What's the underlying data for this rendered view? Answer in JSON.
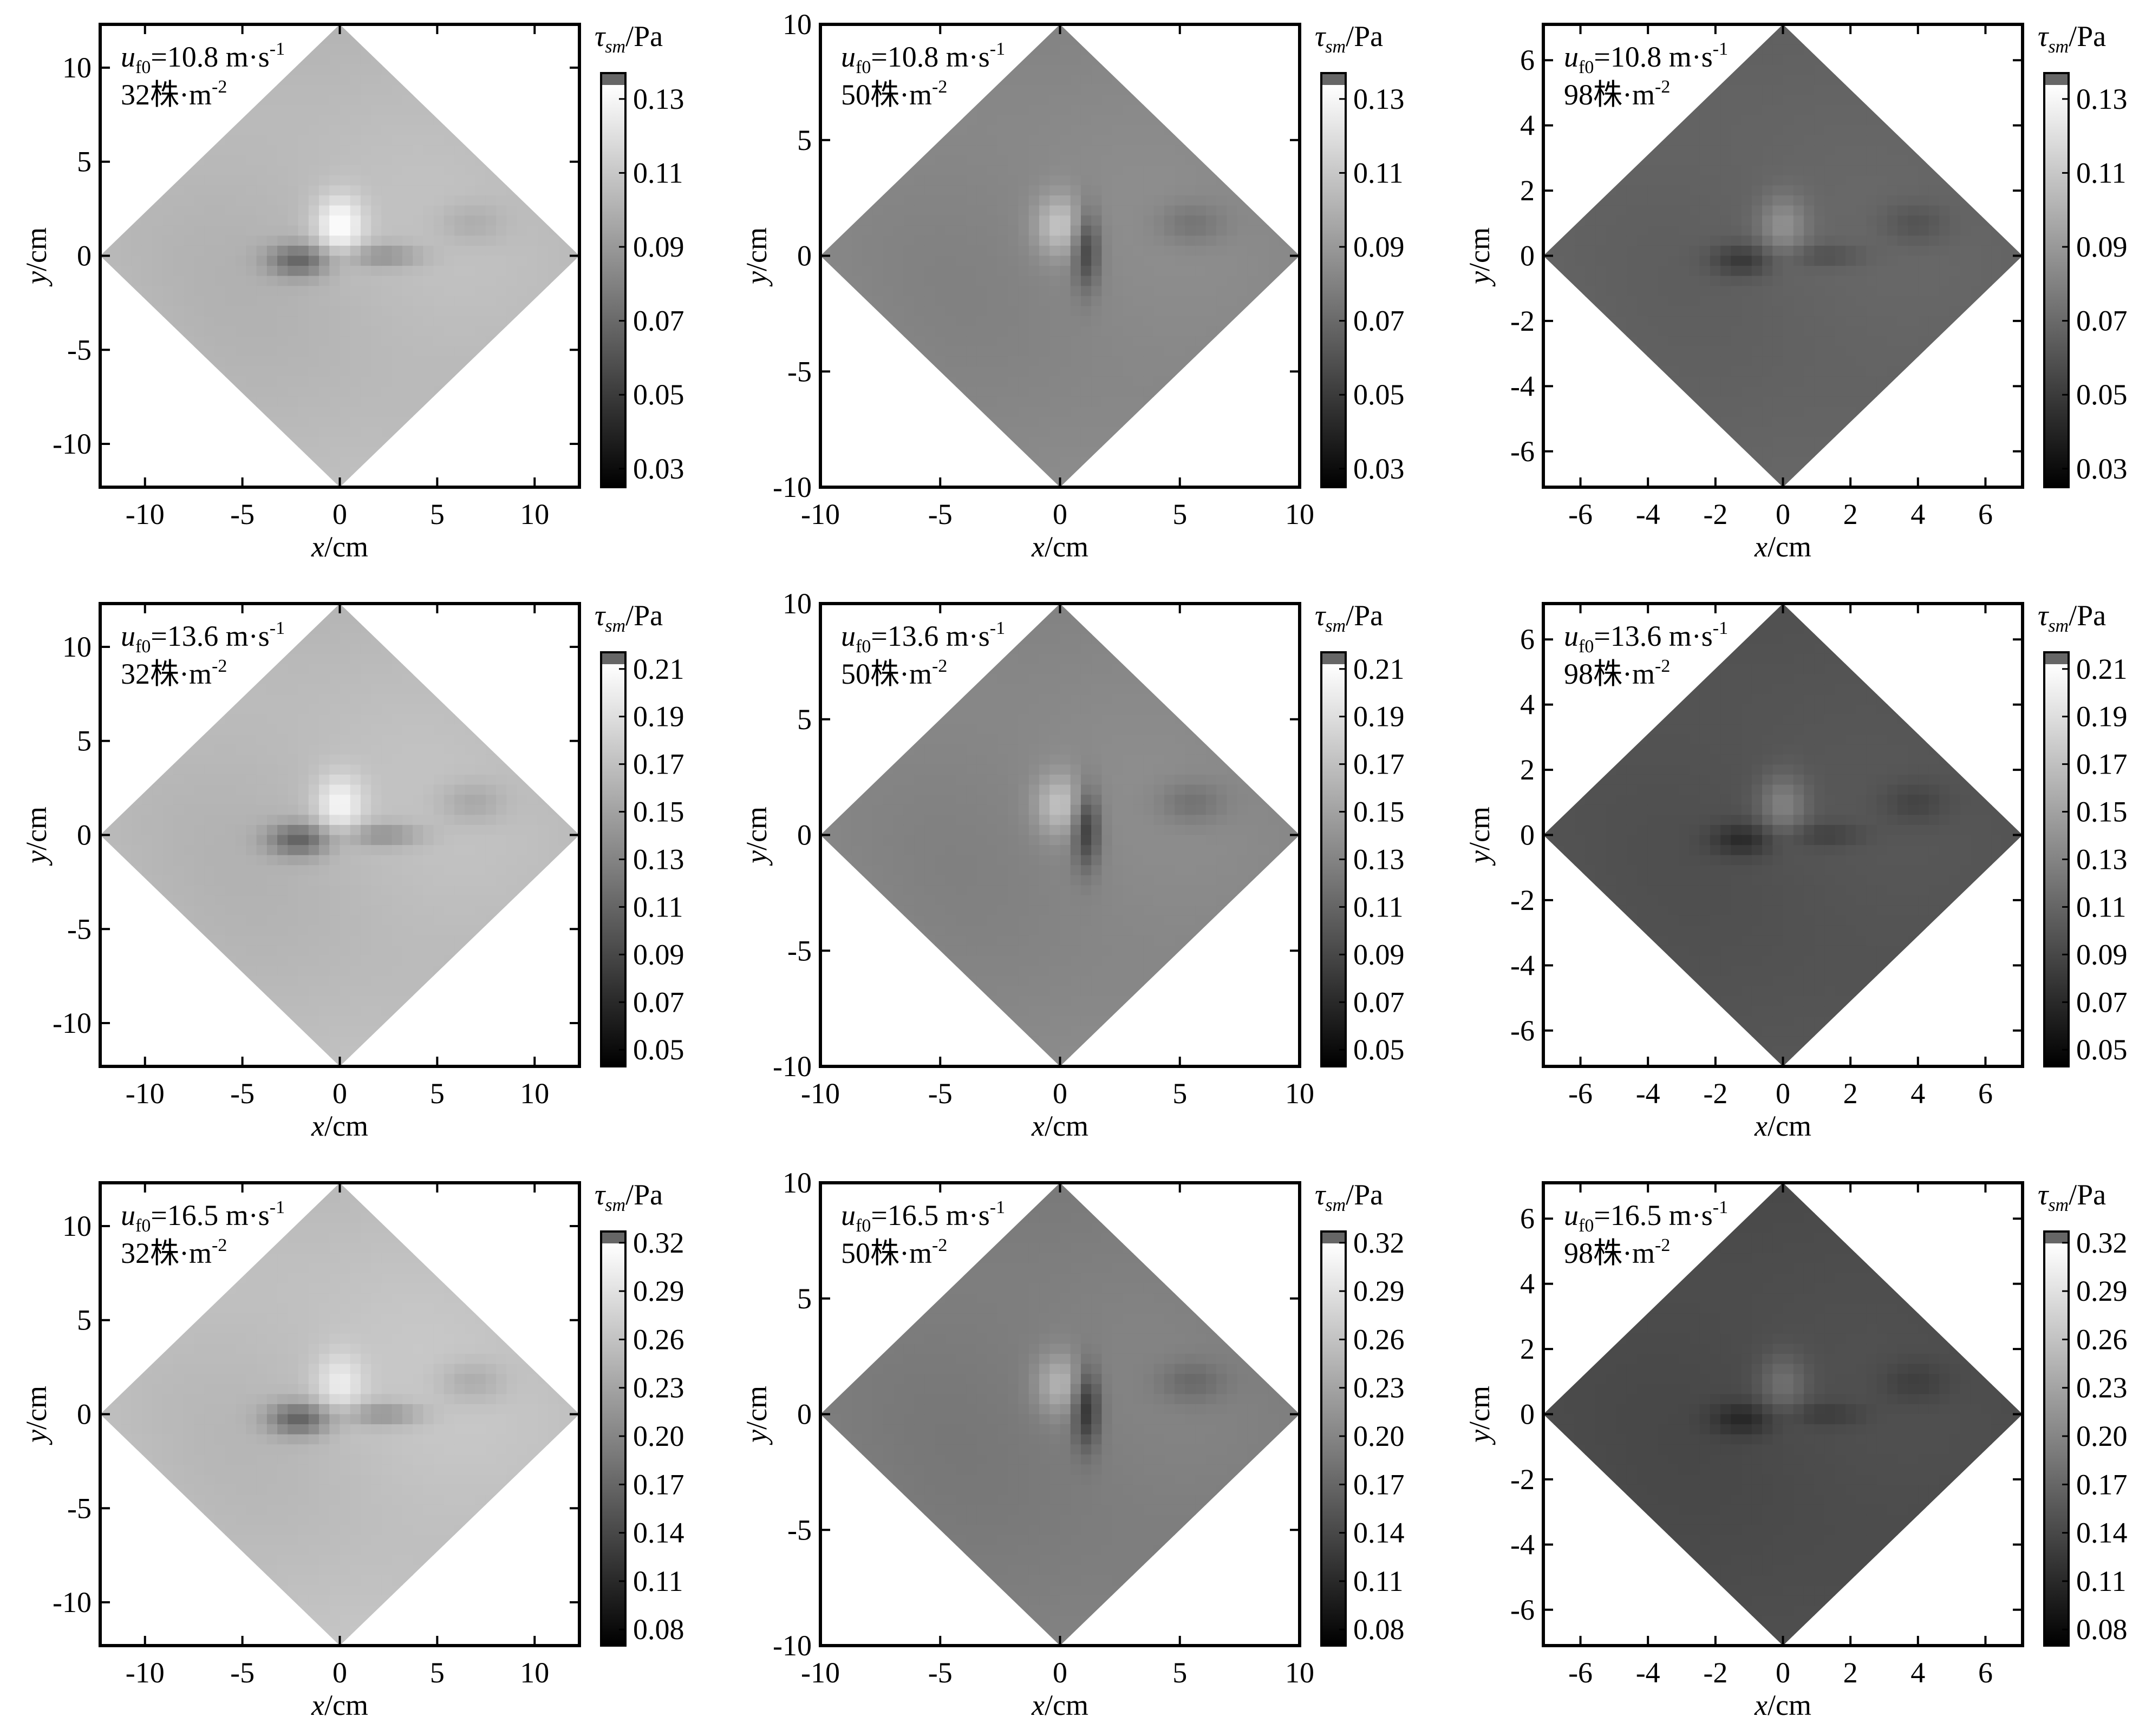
{
  "figure": {
    "grayscale_stops": [
      "#000000",
      "#1a1a1a",
      "#333333",
      "#4d4d4d",
      "#666666",
      "#808080",
      "#999999",
      "#b3b3b3",
      "#cccccc",
      "#e6e6e6",
      "#ffffff"
    ],
    "top_swatch_color": "#666666"
  },
  "chart_data": [
    {
      "type": "heatmap",
      "row": 0,
      "col": 0,
      "xlabel": "x/cm",
      "ylabel": "y/cm",
      "xlim": [
        -12.3,
        12.3
      ],
      "ylim": [
        -12.3,
        12.3
      ],
      "xticks": [
        -10,
        -5,
        0,
        5,
        10
      ],
      "yticks": [
        -10,
        -5,
        0,
        5,
        10
      ],
      "xtick_labels": [
        "-10",
        "-5",
        "0",
        "5",
        "10"
      ],
      "ytick_labels": [
        "-10",
        "-5",
        "0",
        "5",
        "10"
      ],
      "diamond_half_diagonal": 12.3,
      "wind_speed_label": "=10.8 m·s",
      "wind_speed_exponent": "-1",
      "density_label": "32株·m",
      "density_exponent": "-2",
      "colorbar": {
        "title_symbol": "τ",
        "title_subscript": "sm",
        "title_unit": "/Pa",
        "range": [
          0.025,
          0.137
        ],
        "ticks": [
          0.03,
          0.05,
          0.07,
          0.09,
          0.11,
          0.13
        ],
        "tick_labels": [
          "0.03",
          "0.05",
          "0.07",
          "0.09",
          "0.11",
          "0.13"
        ]
      },
      "field": {
        "base": 0.105,
        "hot": 0.035,
        "wake": 0.04,
        "flank": 0.0,
        "right_dark": 0.01
      }
    },
    {
      "type": "heatmap",
      "row": 0,
      "col": 1,
      "xlabel": "x/cm",
      "ylabel": "y/cm",
      "xlim": [
        -10,
        10
      ],
      "ylim": [
        -10,
        10
      ],
      "xticks": [
        -10,
        -5,
        0,
        5,
        10
      ],
      "yticks": [
        -10,
        -5,
        0,
        5,
        10
      ],
      "xtick_labels": [
        "-10",
        "-5",
        "0",
        "5",
        "10"
      ],
      "ytick_labels": [
        "-10",
        "-5",
        "0",
        "5",
        "10"
      ],
      "diamond_half_diagonal": 10,
      "wind_speed_label": "=10.8 m·s",
      "wind_speed_exponent": "-1",
      "density_label": "50株·m",
      "density_exponent": "-2",
      "colorbar": {
        "title_symbol": "τ",
        "title_subscript": "sm",
        "title_unit": "/Pa",
        "range": [
          0.025,
          0.137
        ],
        "ticks": [
          0.03,
          0.05,
          0.07,
          0.09,
          0.11,
          0.13
        ],
        "tick_labels": [
          "0.03",
          "0.05",
          "0.07",
          "0.09",
          "0.11",
          "0.13"
        ]
      },
      "field": {
        "base": 0.08,
        "hot": 0.03,
        "wake": 0.0,
        "flank": 0.035,
        "right_dark": 0.012
      }
    },
    {
      "type": "heatmap",
      "row": 0,
      "col": 2,
      "xlabel": "x/cm",
      "ylabel": "y/cm",
      "xlim": [
        -7.1,
        7.1
      ],
      "ylim": [
        -7.1,
        7.1
      ],
      "xticks": [
        -6,
        -4,
        -2,
        0,
        2,
        4,
        6
      ],
      "yticks": [
        -6,
        -4,
        -2,
        0,
        2,
        4,
        6
      ],
      "xtick_labels": [
        "-6",
        "-4",
        "-2",
        "0",
        "2",
        "4",
        "6"
      ],
      "ytick_labels": [
        "-6",
        "-4",
        "-2",
        "0",
        "2",
        "4",
        "6"
      ],
      "diamond_half_diagonal": 7.1,
      "wind_speed_label": "=10.8 m·s",
      "wind_speed_exponent": "-1",
      "density_label": "98株·m",
      "density_exponent": "-2",
      "colorbar": {
        "title_symbol": "τ",
        "title_subscript": "sm",
        "title_unit": "/Pa",
        "range": [
          0.025,
          0.137
        ],
        "ticks": [
          0.03,
          0.05,
          0.07,
          0.09,
          0.11,
          0.13
        ],
        "tick_labels": [
          "0.03",
          "0.05",
          "0.07",
          "0.09",
          "0.11",
          "0.13"
        ]
      },
      "field": {
        "base": 0.062,
        "hot": 0.022,
        "wake": 0.02,
        "flank": 0.0,
        "right_dark": 0.01
      }
    },
    {
      "type": "heatmap",
      "row": 1,
      "col": 0,
      "xlabel": "x/cm",
      "ylabel": "y/cm",
      "xlim": [
        -12.3,
        12.3
      ],
      "ylim": [
        -12.3,
        12.3
      ],
      "xticks": [
        -10,
        -5,
        0,
        5,
        10
      ],
      "yticks": [
        -10,
        -5,
        0,
        5,
        10
      ],
      "xtick_labels": [
        "-10",
        "-5",
        "0",
        "5",
        "10"
      ],
      "ytick_labels": [
        "-10",
        "-5",
        "0",
        "5",
        "10"
      ],
      "diamond_half_diagonal": 12.3,
      "wind_speed_label": "=13.6 m·s",
      "wind_speed_exponent": "-1",
      "density_label": "32株·m",
      "density_exponent": "-2",
      "colorbar": {
        "title_symbol": "τ",
        "title_subscript": "sm",
        "title_unit": "/Pa",
        "range": [
          0.043,
          0.217
        ],
        "ticks": [
          0.05,
          0.07,
          0.09,
          0.11,
          0.13,
          0.15,
          0.17,
          0.19,
          0.21
        ],
        "tick_labels": [
          "0.05",
          "0.07",
          "0.09",
          "0.11",
          "0.13",
          "0.15",
          "0.17",
          "0.19",
          "0.21"
        ]
      },
      "field": {
        "base": 0.168,
        "hot": 0.045,
        "wake": 0.065,
        "flank": 0.0,
        "right_dark": 0.02
      }
    },
    {
      "type": "heatmap",
      "row": 1,
      "col": 1,
      "xlabel": "x/cm",
      "ylabel": "y/cm",
      "xlim": [
        -10,
        10
      ],
      "ylim": [
        -10,
        10
      ],
      "xticks": [
        -10,
        -5,
        0,
        5,
        10
      ],
      "yticks": [
        -10,
        -5,
        0,
        5,
        10
      ],
      "xtick_labels": [
        "-10",
        "-5",
        "0",
        "5",
        "10"
      ],
      "ytick_labels": [
        "-10",
        "-5",
        "0",
        "5",
        "10"
      ],
      "diamond_half_diagonal": 10,
      "wind_speed_label": "=13.6 m·s",
      "wind_speed_exponent": "-1",
      "density_label": "50株·m",
      "density_exponent": "-2",
      "colorbar": {
        "title_symbol": "τ",
        "title_subscript": "sm",
        "title_unit": "/Pa",
        "range": [
          0.043,
          0.217
        ],
        "ticks": [
          0.05,
          0.07,
          0.09,
          0.11,
          0.13,
          0.15,
          0.17,
          0.19,
          0.21
        ],
        "tick_labels": [
          "0.05",
          "0.07",
          "0.09",
          "0.11",
          "0.13",
          "0.15",
          "0.17",
          "0.19",
          "0.21"
        ]
      },
      "field": {
        "base": 0.128,
        "hot": 0.045,
        "wake": 0.0,
        "flank": 0.06,
        "right_dark": 0.02
      }
    },
    {
      "type": "heatmap",
      "row": 1,
      "col": 2,
      "xlabel": "x/cm",
      "ylabel": "y/cm",
      "xlim": [
        -7.1,
        7.1
      ],
      "ylim": [
        -7.1,
        7.1
      ],
      "xticks": [
        -6,
        -4,
        -2,
        0,
        2,
        4,
        6
      ],
      "yticks": [
        -6,
        -4,
        -2,
        0,
        2,
        4,
        6
      ],
      "xtick_labels": [
        "-6",
        "-4",
        "-2",
        "0",
        "2",
        "4",
        "6"
      ],
      "ytick_labels": [
        "-6",
        "-4",
        "-2",
        "0",
        "2",
        "4",
        "6"
      ],
      "diamond_half_diagonal": 7.1,
      "wind_speed_label": "=13.6 m·s",
      "wind_speed_exponent": "-1",
      "density_label": "98株·m",
      "density_exponent": "-2",
      "colorbar": {
        "title_symbol": "τ",
        "title_subscript": "sm",
        "title_unit": "/Pa",
        "range": [
          0.043,
          0.217
        ],
        "ticks": [
          0.05,
          0.07,
          0.09,
          0.11,
          0.13,
          0.15,
          0.17,
          0.19,
          0.21
        ],
        "tick_labels": [
          "0.05",
          "0.07",
          "0.09",
          "0.11",
          "0.13",
          "0.15",
          "0.17",
          "0.19",
          "0.21"
        ]
      },
      "field": {
        "base": 0.088,
        "hot": 0.035,
        "wake": 0.03,
        "flank": 0.0,
        "right_dark": 0.015
      }
    },
    {
      "type": "heatmap",
      "row": 2,
      "col": 0,
      "xlabel": "x/cm",
      "ylabel": "y/cm",
      "xlim": [
        -12.3,
        12.3
      ],
      "ylim": [
        -12.3,
        12.3
      ],
      "xticks": [
        -10,
        -5,
        0,
        5,
        10
      ],
      "yticks": [
        -10,
        -5,
        0,
        5,
        10
      ],
      "xtick_labels": [
        "-10",
        "-5",
        "0",
        "5",
        "10"
      ],
      "ytick_labels": [
        "-10",
        "-5",
        "0",
        "5",
        "10"
      ],
      "diamond_half_diagonal": 12.3,
      "wind_speed_label": "=16.5 m·s",
      "wind_speed_exponent": "-1",
      "density_label": "32株·m",
      "density_exponent": "-2",
      "colorbar": {
        "title_symbol": "τ",
        "title_subscript": "sm",
        "title_unit": "/Pa",
        "range": [
          0.07,
          0.327
        ],
        "ticks": [
          0.08,
          0.11,
          0.14,
          0.17,
          0.2,
          0.23,
          0.26,
          0.29,
          0.32
        ],
        "tick_labels": [
          "0.08",
          "0.11",
          "0.14",
          "0.17",
          "0.20",
          "0.23",
          "0.26",
          "0.29",
          "0.32"
        ]
      },
      "field": {
        "base": 0.26,
        "hot": 0.05,
        "wake": 0.1,
        "flank": 0.0,
        "right_dark": 0.03
      }
    },
    {
      "type": "heatmap",
      "row": 2,
      "col": 1,
      "xlabel": "x/cm",
      "ylabel": "y/cm",
      "xlim": [
        -10,
        10
      ],
      "ylim": [
        -10,
        10
      ],
      "xticks": [
        -10,
        -5,
        0,
        5,
        10
      ],
      "yticks": [
        -10,
        -5,
        0,
        5,
        10
      ],
      "xtick_labels": [
        "-10",
        "-5",
        "0",
        "5",
        "10"
      ],
      "ytick_labels": [
        "-10",
        "-5",
        "0",
        "5",
        "10"
      ],
      "diamond_half_diagonal": 10,
      "wind_speed_label": "=16.5 m·s",
      "wind_speed_exponent": "-1",
      "density_label": "50株·m",
      "density_exponent": "-2",
      "colorbar": {
        "title_symbol": "τ",
        "title_subscript": "sm",
        "title_unit": "/Pa",
        "range": [
          0.07,
          0.327
        ],
        "ticks": [
          0.08,
          0.11,
          0.14,
          0.17,
          0.2,
          0.23,
          0.26,
          0.29,
          0.32
        ],
        "tick_labels": [
          "0.08",
          "0.11",
          "0.14",
          "0.17",
          "0.20",
          "0.23",
          "0.26",
          "0.29",
          "0.32"
        ]
      },
      "field": {
        "base": 0.185,
        "hot": 0.06,
        "wake": 0.0,
        "flank": 0.09,
        "right_dark": 0.03
      }
    },
    {
      "type": "heatmap",
      "row": 2,
      "col": 2,
      "xlabel": "x/cm",
      "ylabel": "y/cm",
      "xlim": [
        -7.1,
        7.1
      ],
      "ylim": [
        -7.1,
        7.1
      ],
      "xticks": [
        -6,
        -4,
        -2,
        0,
        2,
        4,
        6
      ],
      "yticks": [
        -6,
        -4,
        -2,
        0,
        2,
        4,
        6
      ],
      "xtick_labels": [
        "-6",
        "-4",
        "-2",
        "0",
        "2",
        "4",
        "6"
      ],
      "ytick_labels": [
        "-6",
        "-4",
        "-2",
        "0",
        "2",
        "4",
        "6"
      ],
      "diamond_half_diagonal": 7.1,
      "wind_speed_label": "=16.5 m·s",
      "wind_speed_exponent": "-1",
      "density_label": "98株·m",
      "density_exponent": "-2",
      "colorbar": {
        "title_symbol": "τ",
        "title_subscript": "sm",
        "title_unit": "/Pa",
        "range": [
          0.07,
          0.327
        ],
        "ticks": [
          0.08,
          0.11,
          0.14,
          0.17,
          0.2,
          0.23,
          0.26,
          0.29,
          0.32
        ],
        "tick_labels": [
          "0.08",
          "0.11",
          "0.14",
          "0.17",
          "0.20",
          "0.23",
          "0.26",
          "0.29",
          "0.32"
        ]
      },
      "field": {
        "base": 0.128,
        "hot": 0.04,
        "wake": 0.04,
        "flank": 0.0,
        "right_dark": 0.02
      }
    }
  ]
}
